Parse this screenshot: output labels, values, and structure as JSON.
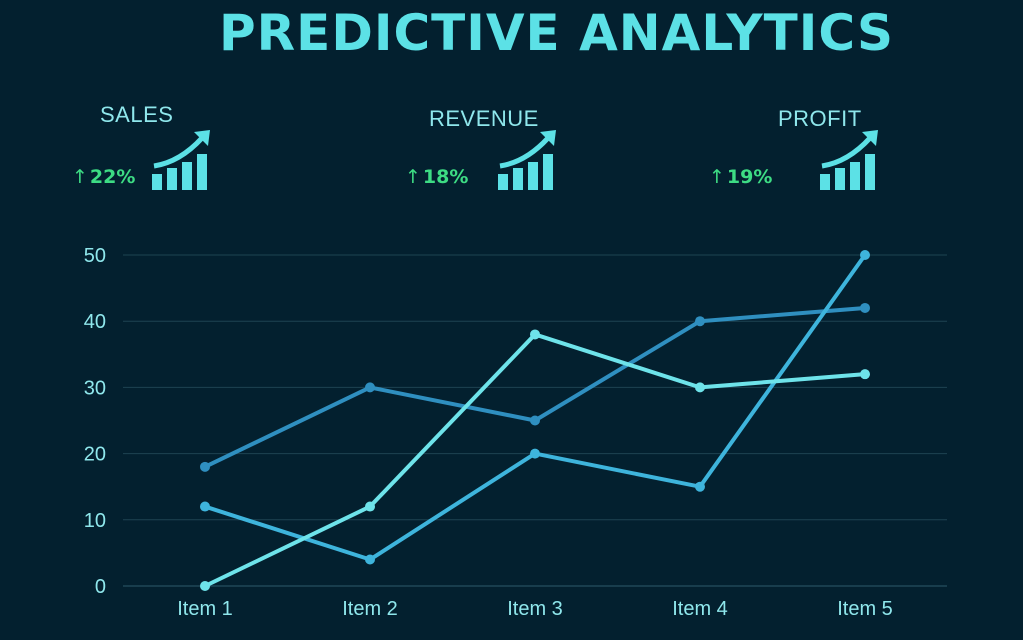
{
  "title": "PREDICTIVE ANALYTICS",
  "kpis": [
    {
      "label": "SALES",
      "change": "22%",
      "direction": "up",
      "icon": "growth-chart-icon"
    },
    {
      "label": "REVENUE",
      "change": "18%",
      "direction": "up",
      "icon": "growth-chart-icon"
    },
    {
      "label": "PROFIT",
      "change": "19%",
      "direction": "up",
      "icon": "growth-chart-icon"
    }
  ],
  "colors": {
    "background": "#03202f",
    "accent": "#5ce1e6",
    "positive": "#3ddc84",
    "grid": "#1e4352"
  },
  "chart_data": {
    "type": "line",
    "title": "",
    "xlabel": "",
    "ylabel": "",
    "categories": [
      "Item 1",
      "Item 2",
      "Item 3",
      "Item 4",
      "Item 5"
    ],
    "yticks": [
      0,
      10,
      20,
      30,
      40,
      50
    ],
    "ylim": [
      0,
      50
    ],
    "grid": true,
    "series": [
      {
        "values": [
          18,
          30,
          25,
          40,
          42
        ],
        "color": "#2f8fc0"
      },
      {
        "values": [
          12,
          4,
          20,
          15,
          50
        ],
        "color": "#3eb4dc"
      },
      {
        "values": [
          0,
          12,
          38,
          30,
          32
        ],
        "color": "#6ee3ea"
      }
    ]
  }
}
